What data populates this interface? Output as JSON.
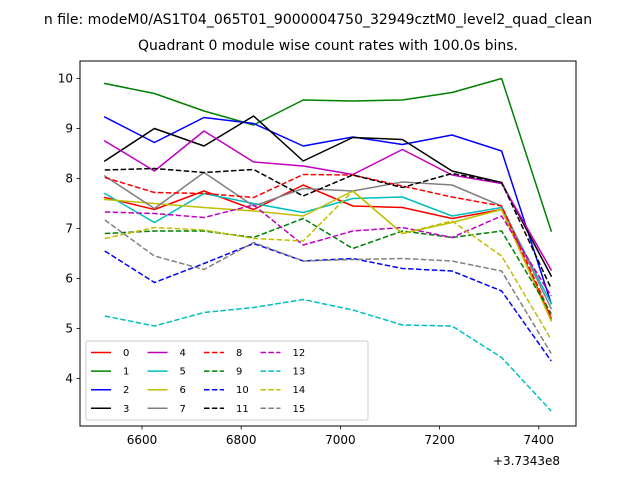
{
  "figure": {
    "suptitle": "n file: modeM0/AS1T04_065T01_9000004750_32949cztM0_level2_quad_clean"
  },
  "chart_data": {
    "type": "line",
    "title": "Quadrant 0 module wise count rates with 100.0s bins.",
    "xlabel": "",
    "ylabel": "",
    "x_offset_label": "+3.7343e8",
    "x": [
      6525,
      6625,
      6725,
      6825,
      6925,
      7025,
      7125,
      7225,
      7325,
      7425
    ],
    "xlim": [
      6475,
      7475
    ],
    "ylim": [
      3.05,
      10.35
    ],
    "xticks": [
      6600,
      6800,
      7000,
      7200,
      7400
    ],
    "yticks": [
      4,
      5,
      6,
      7,
      8,
      9,
      10
    ],
    "grid": false,
    "legend": {
      "position": "lower-left",
      "columns": 5
    },
    "series": [
      {
        "name": "0",
        "color": "#ff0000",
        "dash": "solid",
        "values": [
          7.62,
          7.38,
          7.75,
          7.38,
          7.87,
          7.45,
          7.42,
          7.2,
          7.38,
          5.2
        ]
      },
      {
        "name": "1",
        "color": "#008000",
        "dash": "solid",
        "values": [
          9.9,
          9.7,
          9.35,
          9.07,
          9.57,
          9.55,
          9.57,
          9.72,
          10.0,
          6.95
        ]
      },
      {
        "name": "2",
        "color": "#0000ff",
        "dash": "solid",
        "values": [
          9.23,
          8.72,
          9.22,
          9.1,
          8.65,
          8.83,
          8.68,
          8.87,
          8.55,
          5.5
        ]
      },
      {
        "name": "3",
        "color": "#000000",
        "dash": "solid",
        "values": [
          8.35,
          9.0,
          8.65,
          9.25,
          8.35,
          8.82,
          8.78,
          8.15,
          7.92,
          6.05
        ]
      },
      {
        "name": "4",
        "color": "#bf00bf",
        "dash": "solid",
        "values": [
          8.75,
          8.15,
          8.95,
          8.33,
          8.25,
          8.08,
          8.58,
          8.07,
          7.9,
          6.17
        ]
      },
      {
        "name": "5",
        "color": "#00bfbf",
        "dash": "solid",
        "values": [
          7.7,
          7.12,
          7.7,
          7.5,
          7.32,
          7.6,
          7.63,
          7.25,
          7.42,
          5.5
        ]
      },
      {
        "name": "6",
        "color": "#bfbf00",
        "dash": "solid",
        "values": [
          7.58,
          7.5,
          7.42,
          7.35,
          7.25,
          7.75,
          6.9,
          7.12,
          7.38,
          5.15
        ]
      },
      {
        "name": "7",
        "color": "#808080",
        "dash": "solid",
        "values": [
          8.05,
          7.4,
          8.12,
          7.45,
          7.8,
          7.75,
          7.93,
          7.87,
          7.45,
          5.4
        ]
      },
      {
        "name": "8",
        "color": "#ff0000",
        "dash": "dashed",
        "values": [
          8.02,
          7.72,
          7.7,
          7.62,
          8.08,
          8.07,
          7.85,
          7.63,
          7.45,
          5.25
        ]
      },
      {
        "name": "9",
        "color": "#008000",
        "dash": "dashed",
        "values": [
          6.9,
          6.95,
          6.95,
          6.82,
          7.2,
          6.6,
          6.95,
          6.82,
          6.95,
          5.3
        ]
      },
      {
        "name": "10",
        "color": "#0000ff",
        "dash": "dashed",
        "values": [
          6.55,
          5.92,
          6.3,
          6.7,
          6.35,
          6.4,
          6.2,
          6.15,
          5.75,
          4.35
        ]
      },
      {
        "name": "11",
        "color": "#000000",
        "dash": "dashed",
        "values": [
          8.17,
          8.2,
          8.12,
          8.18,
          7.65,
          8.07,
          7.82,
          8.1,
          7.92,
          5.8
        ]
      },
      {
        "name": "12",
        "color": "#bf00bf",
        "dash": "dashed",
        "values": [
          7.33,
          7.3,
          7.22,
          7.47,
          6.67,
          6.95,
          7.02,
          6.82,
          7.25,
          5.65
        ]
      },
      {
        "name": "13",
        "color": "#00bfbf",
        "dash": "dashed",
        "values": [
          5.25,
          5.05,
          5.32,
          5.42,
          5.58,
          5.37,
          5.07,
          5.05,
          4.42,
          3.35
        ]
      },
      {
        "name": "14",
        "color": "#bfbf00",
        "dash": "dashed",
        "values": [
          6.8,
          7.02,
          6.97,
          6.8,
          6.75,
          7.75,
          6.9,
          7.15,
          6.45,
          4.78
        ]
      },
      {
        "name": "15",
        "color": "#808080",
        "dash": "dashed",
        "values": [
          7.17,
          6.45,
          6.18,
          6.72,
          6.35,
          6.38,
          6.4,
          6.35,
          6.15,
          4.5
        ]
      }
    ]
  }
}
